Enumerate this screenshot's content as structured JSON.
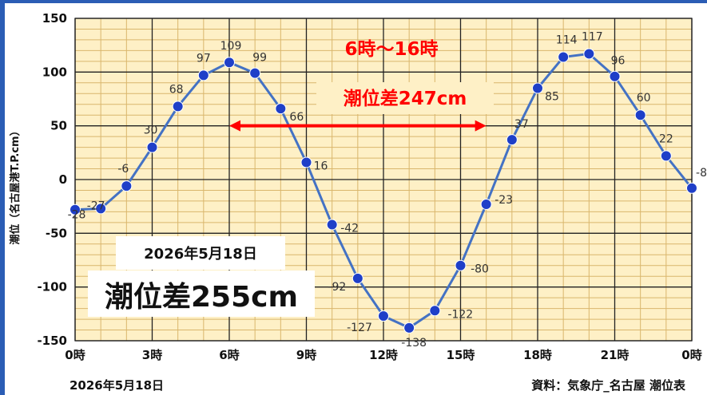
{
  "chart_data": {
    "type": "line",
    "ylabel": "潮位（名古屋港T.P.cm）",
    "ylim": [
      -150,
      150
    ],
    "yticks": [
      150,
      100,
      50,
      0,
      -50,
      -100,
      -150
    ],
    "xlim": [
      0,
      24
    ],
    "xticks": [
      {
        "x": 0,
        "label": "0時"
      },
      {
        "x": 3,
        "label": "3時"
      },
      {
        "x": 6,
        "label": "6時"
      },
      {
        "x": 9,
        "label": "9時"
      },
      {
        "x": 12,
        "label": "12時"
      },
      {
        "x": 15,
        "label": "15時"
      },
      {
        "x": 18,
        "label": "18時"
      },
      {
        "x": 21,
        "label": "21時"
      },
      {
        "x": 24,
        "label": "0時"
      }
    ],
    "grid": true,
    "series": [
      {
        "color": "#4472c4",
        "x": [
          0,
          1,
          2,
          3,
          4,
          5,
          6,
          7,
          8,
          9,
          10,
          11,
          12,
          13,
          14,
          15,
          16,
          17,
          18,
          19,
          20,
          21,
          22,
          23,
          24
        ],
        "values": [
          -28,
          -27,
          -6,
          30,
          68,
          97,
          109,
          99,
          66,
          16,
          -42,
          -92,
          -127,
          -138,
          -122,
          -80,
          -23,
          37,
          85,
          114,
          117,
          96,
          60,
          22,
          -8
        ]
      }
    ],
    "annotations": {
      "range_title": "6時〜16時",
      "range_diff": "潮位差247cm",
      "arrow_from_x": 6,
      "arrow_to_x": 16,
      "arrow_y": 50,
      "arrow_color": "#ff0000",
      "date_box": "2026年5月18日",
      "total_diff": "潮位差255cm"
    },
    "footer_date": "2026年5月18日",
    "source": "資料：気象庁_名古屋 潮位表"
  },
  "colors": {
    "frame": "#2b5db5",
    "plot_bg": "#fef0c6",
    "grid": "#d9b66c",
    "line": "#4472c4",
    "marker": "#1f3fc8",
    "highlight": "#ff0000"
  }
}
